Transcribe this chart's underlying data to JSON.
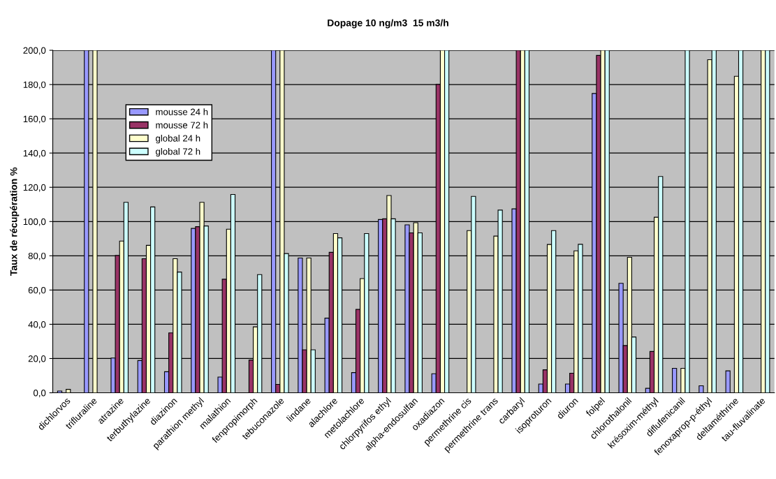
{
  "chart_data": {
    "type": "bar",
    "title": "Dopage 10 ng/m3  15 m3/h",
    "ylabel": "Taux de récupération %",
    "categories": [
      "dichlorvos",
      "trifluraline",
      "atrazine",
      "terbuthylazine",
      "diazinon",
      "parathion methyl",
      "malathion",
      "fenpropimorph",
      "tebuconazole",
      "lindane",
      "alachlore",
      "metolachlore",
      "chlorpyrifos ethyl",
      "alpha-endosulfan",
      "oxadiazon",
      "permethrine cis",
      "permethrine trans",
      "carbaryl",
      "isoproturon",
      "diuron",
      "folpel",
      "chlorothalonil",
      "krésoxim-méthyl",
      "diflufenicanil",
      "fenoxaprop-p-éthyl",
      "deltaméthrine",
      "tau-fluvalinate"
    ],
    "series": [
      {
        "name": "mousse 24 h",
        "color": "#9999ff",
        "values": [
          1.0,
          200,
          20.3,
          18.8,
          12.3,
          96.0,
          9.2,
          null,
          200,
          78.7,
          43.6,
          11.8,
          101.2,
          98.1,
          11.1,
          null,
          null,
          107.4,
          5.1,
          5.1,
          174.8,
          63.9,
          2.6,
          14.3,
          4.1,
          12.8,
          null
        ]
      },
      {
        "name": "mousse 72 h",
        "color": "#993366",
        "values": [
          null,
          null,
          80.2,
          78.3,
          35.0,
          97.0,
          66.3,
          19.1,
          4.9,
          25.1,
          82.0,
          48.7,
          101.6,
          93.4,
          180.1,
          null,
          null,
          200,
          13.4,
          11.4,
          197.0,
          27.6,
          24.1,
          null,
          null,
          null,
          null
        ]
      },
      {
        "name": "global 24 h",
        "color": "#ffffcc",
        "values": [
          2.0,
          200,
          88.6,
          86.1,
          78.3,
          111.2,
          95.5,
          38.5,
          200,
          78.7,
          93.0,
          66.7,
          115.2,
          99.3,
          200,
          94.7,
          91.5,
          200,
          86.6,
          82.9,
          200,
          79.1,
          102.5,
          14.3,
          194.5,
          184.8,
          200
        ]
      },
      {
        "name": "global 72 h",
        "color": "#ccffff",
        "values": [
          null,
          null,
          111.2,
          108.5,
          70.5,
          97.4,
          115.8,
          69.0,
          81.3,
          25.1,
          90.5,
          93.0,
          101.6,
          93.4,
          200,
          114.7,
          106.7,
          200,
          94.7,
          86.7,
          200,
          32.6,
          126.3,
          200,
          200,
          200,
          200
        ]
      }
    ],
    "ylim": [
      0,
      200
    ],
    "yticks": [
      {
        "value": 0,
        "label": "0,0"
      },
      {
        "value": 20,
        "label": "20,0"
      },
      {
        "value": 40,
        "label": "40,0"
      },
      {
        "value": 60,
        "label": "60,0"
      },
      {
        "value": 80,
        "label": "80,0"
      },
      {
        "value": 100,
        "label": "100,0"
      },
      {
        "value": 120,
        "label": "120,0"
      },
      {
        "value": 140,
        "label": "140,0"
      },
      {
        "value": 160,
        "label": "160,0"
      },
      {
        "value": 180,
        "label": "180,0"
      },
      {
        "value": 200,
        "label": "200,0"
      }
    ],
    "grid": "y",
    "legend": "top left"
  }
}
